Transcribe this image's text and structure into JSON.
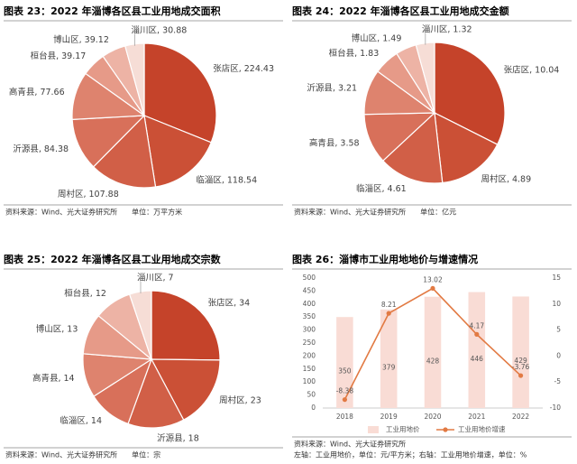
{
  "chart_data": [
    {
      "type": "pie",
      "title": "图表 23：2022 年淄博各区县工业用地成交面积",
      "values": [
        224.43,
        118.54,
        107.88,
        84.38,
        77.66,
        39.17,
        39.12,
        30.88
      ],
      "value_labels": [
        "张店区, 224.43",
        "临淄区, 118.54",
        "周村区, 107.88",
        "沂源县, 84.38",
        "高青县, 77.66",
        "桓台县, 39.17",
        "博山区, 39.12",
        "淄川区, 30.88"
      ],
      "colors": [
        "#c5432a",
        "#cb5036",
        "#d15f47",
        "#d8705a",
        "#de836e",
        "#e69a88",
        "#edb3a5",
        "#f6ddd6"
      ],
      "notes": [
        "资料来源：Wind、光大证券研究所　　单位：万平方米"
      ]
    },
    {
      "type": "pie",
      "title": "图表 24：2022 年淄博各区县工业用地成交金额",
      "values": [
        10.04,
        4.89,
        4.61,
        3.58,
        3.21,
        1.83,
        1.49,
        1.32
      ],
      "value_labels": [
        "张店区, 10.04",
        "周村区, 4.89",
        "临淄区, 4.61",
        "高青县, 3.58",
        "沂源县, 3.21",
        "桓台县, 1.83",
        "博山区, 1.49",
        "淄川区, 1.32"
      ],
      "colors": [
        "#c5432a",
        "#cb5036",
        "#d15f47",
        "#d8705a",
        "#de836e",
        "#e69a88",
        "#edb3a5",
        "#f6ddd6"
      ],
      "notes": [
        "资料来源：Wind、光大证券研究所　　单位：亿元"
      ]
    },
    {
      "type": "pie",
      "title": "图表 25：2022 年淄博各区县工业用地成交宗数",
      "values": [
        34,
        23,
        18,
        14,
        14,
        13,
        12,
        7
      ],
      "value_labels": [
        "张店区, 34",
        "周村区, 23",
        "沂源县, 18",
        "临淄区, 14",
        "高青县, 14",
        "博山区, 13",
        "桓台县, 12",
        "淄川区, 7"
      ],
      "colors": [
        "#c5432a",
        "#cb5036",
        "#d15f47",
        "#d8705a",
        "#de836e",
        "#e69a88",
        "#edb3a5",
        "#f6ddd6"
      ],
      "notes": [
        "资料来源：Wind、光大证券研究所　　单位：宗"
      ]
    },
    {
      "type": "bar",
      "title": "图表 26：淄博市工业用地地价与增速情况",
      "categories": [
        "2018",
        "2019",
        "2020",
        "2021",
        "2022"
      ],
      "series": [
        {
          "name": "工业用地价",
          "type": "bar",
          "color": "#f9dcd5",
          "values": [
            350,
            379,
            428,
            446,
            429
          ]
        },
        {
          "name": "工业用地价增速",
          "type": "line",
          "axis": "y2",
          "color": "#e27a43",
          "values": [
            -8.38,
            8.21,
            13.02,
            4.17,
            -3.76
          ]
        }
      ],
      "ylim": [
        0,
        500
      ],
      "yticks": [
        0,
        50,
        100,
        150,
        200,
        250,
        300,
        350,
        400,
        450,
        500
      ],
      "y2lim": [
        -10,
        15
      ],
      "y2ticks": [
        -10,
        -5,
        0,
        5,
        10,
        15
      ],
      "notes": [
        "资料来源：Wind、光大证券研究所",
        "左轴：工业用地价，单位：元/平方米；右轴：工业用地价增速，单位：%"
      ]
    }
  ]
}
